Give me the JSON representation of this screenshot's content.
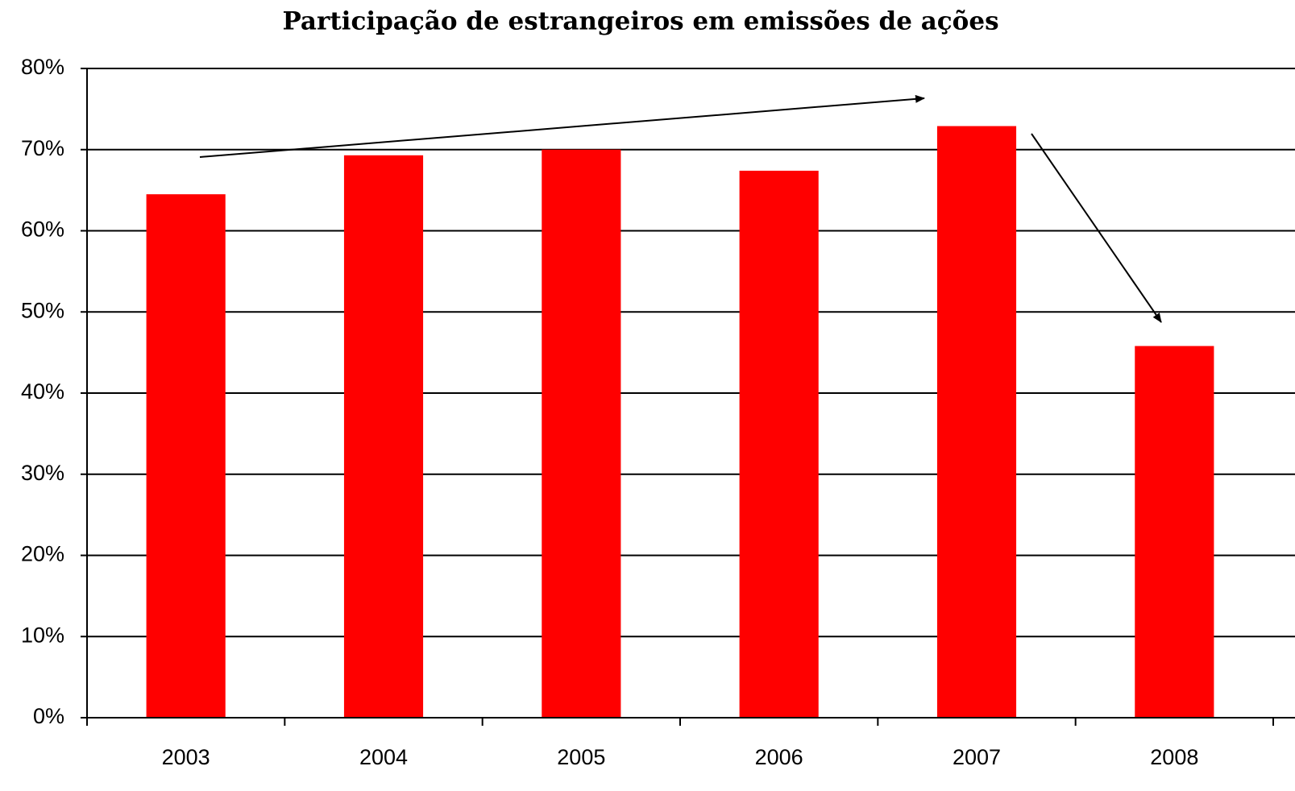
{
  "chart_data": {
    "type": "bar",
    "title": "Participação de estrangeiros em emissões de ações",
    "categories": [
      "2003",
      "2004",
      "2005",
      "2006",
      "2007",
      "2008"
    ],
    "values": [
      64.5,
      69.3,
      70.0,
      67.4,
      72.9,
      45.8
    ],
    "color": "#ff0000",
    "ylim": [
      0,
      80
    ],
    "yticks": [
      {
        "value": 0,
        "label": "0%"
      },
      {
        "value": 10,
        "label": "10%"
      },
      {
        "value": 20,
        "label": "20%"
      },
      {
        "value": 30,
        "label": "30%"
      },
      {
        "value": 40,
        "label": "40%"
      },
      {
        "value": 50,
        "label": "50%"
      },
      {
        "value": 60,
        "label": "60%"
      },
      {
        "value": 70,
        "label": "70%"
      },
      {
        "value": 80,
        "label": "80%"
      }
    ],
    "grid": true
  }
}
